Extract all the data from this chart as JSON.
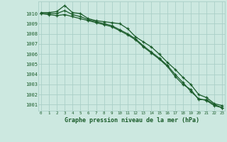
{
  "x": [
    0,
    1,
    2,
    3,
    4,
    5,
    6,
    7,
    8,
    9,
    10,
    11,
    12,
    13,
    14,
    15,
    16,
    17,
    18,
    19,
    20,
    21,
    22,
    23
  ],
  "line1": [
    1010.1,
    1010.1,
    1010.2,
    1010.8,
    1010.1,
    1010.0,
    1009.5,
    1009.3,
    1009.2,
    1009.1,
    1009.0,
    1008.5,
    1007.7,
    1007.2,
    1006.7,
    1006.0,
    1005.2,
    1004.5,
    1003.7,
    1003.0,
    1002.0,
    1001.7,
    1001.1,
    1000.9
  ],
  "line2": [
    1010.0,
    1010.0,
    1010.0,
    1010.3,
    1009.9,
    1009.7,
    1009.4,
    1009.2,
    1009.0,
    1008.8,
    1008.4,
    1008.0,
    1007.5,
    1006.8,
    1006.2,
    1005.6,
    1004.9,
    1004.0,
    1003.2,
    1002.3,
    1001.6,
    1001.4,
    1000.9,
    1000.7
  ],
  "line3": [
    1010.0,
    1009.9,
    1009.8,
    1009.9,
    1009.7,
    1009.5,
    1009.3,
    1009.1,
    1008.9,
    1008.7,
    1008.3,
    1007.9,
    1007.4,
    1006.7,
    1006.1,
    1005.5,
    1004.8,
    1003.8,
    1003.0,
    1002.5,
    1001.5,
    1001.5,
    1001.0,
    1000.7
  ],
  "bg_color": "#cce8e0",
  "grid_color": "#aacfc8",
  "line_color": "#1a5c2a",
  "marker": "+",
  "xlabel": "Graphe pression niveau de la mer (hPa)",
  "yticks": [
    1001,
    1002,
    1003,
    1004,
    1005,
    1006,
    1007,
    1008,
    1009,
    1010
  ],
  "ylim": [
    1000.4,
    1011.2
  ],
  "xlim": [
    -0.3,
    23.3
  ],
  "label_color": "#1a5c2a"
}
